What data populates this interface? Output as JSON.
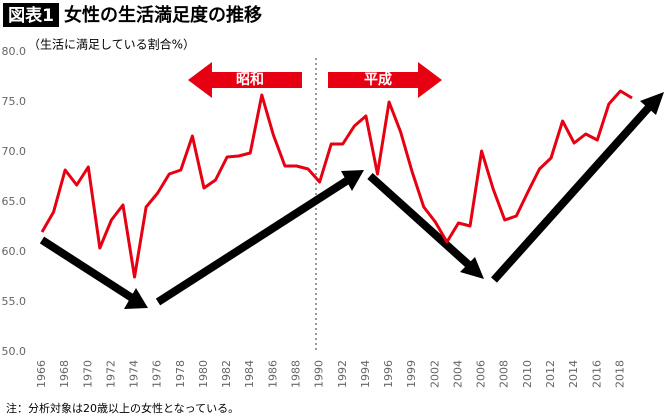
{
  "chart_data": {
    "type": "line",
    "title_tag": "図表1",
    "title": "女性の生活満足度の推移",
    "subtitle": "（生活に満足している割合%）",
    "note": "注：分析対象は20歳以上の女性となっている。",
    "annotations": [
      "昭和",
      "平成"
    ],
    "categories": [
      "1966",
      null,
      "1968",
      null,
      "1970",
      null,
      "1972",
      null,
      "1974",
      null,
      "1976",
      null,
      "1978",
      null,
      "1980",
      null,
      "1982",
      null,
      "1984",
      null,
      "1986",
      null,
      "1988",
      null,
      "1990",
      null,
      "1992",
      null,
      "1994",
      null,
      "1996",
      null,
      "1999",
      null,
      "2002",
      null,
      "2004",
      null,
      "2006",
      null,
      "2008",
      null,
      "2010",
      null,
      "2012",
      null,
      "2014",
      null,
      "2016",
      null,
      "2018",
      null
    ],
    "values": [
      62,
      64,
      68.2,
      66.7,
      68.5,
      60.4,
      63.2,
      64.7,
      57.5,
      64.5,
      65.9,
      67.8,
      68.2,
      71.6,
      66.4,
      67.2,
      69.5,
      69.6,
      69.9,
      75.7,
      71.7,
      68.6,
      68.6,
      68.3,
      67,
      70.8,
      70.8,
      72.6,
      73.6,
      67.8,
      75,
      72,
      68,
      64.5,
      63,
      61,
      62.9,
      62.6,
      70.1,
      66.3,
      63.2,
      63.6,
      66,
      68.3,
      69.4,
      73.1,
      70.9,
      71.8,
      71.2,
      74.8,
      76.1,
      75.4
    ],
    "color": "#e60012",
    "ylim": [
      50,
      80
    ],
    "yticks": [
      {
        "value": 50,
        "label": "50.0"
      },
      {
        "value": 55,
        "label": "55.0"
      },
      {
        "value": 60,
        "label": "60.0"
      },
      {
        "value": 65,
        "label": "65.0"
      },
      {
        "value": 70,
        "label": "70.0"
      },
      {
        "value": 75,
        "label": "75.0"
      },
      {
        "value": 80,
        "label": "80.0"
      }
    ],
    "grid": false
  }
}
